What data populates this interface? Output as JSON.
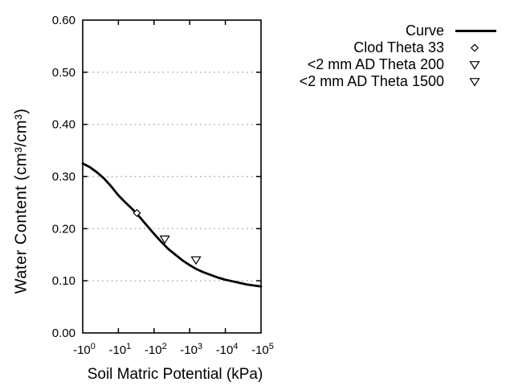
{
  "chart_data": {
    "type": "line",
    "xlabel": "Soil Matric Potential (kPa)",
    "ylabel": "Water Content (cm³/cm³)",
    "x_axis": {
      "scale": "negative-log10",
      "tick_mantissa": "-10",
      "tick_exponents": [
        "0",
        "1",
        "2",
        "3",
        "4",
        "5"
      ],
      "decade_range": [
        0,
        5
      ]
    },
    "y_axis": {
      "range": [
        0.0,
        0.6
      ],
      "tick_values": [
        0.0,
        0.1,
        0.2,
        0.3,
        0.4,
        0.5,
        0.6
      ],
      "tick_labels": [
        "0.00",
        "0.10",
        "0.20",
        "0.30",
        "0.40",
        "0.50",
        "0.60"
      ],
      "gridlines_at": [
        0.1,
        0.2,
        0.3,
        0.4,
        0.5
      ]
    },
    "curve": {
      "name": "Curve",
      "points_decade_theta": [
        [
          0.0,
          0.325
        ],
        [
          0.2,
          0.318
        ],
        [
          0.4,
          0.308
        ],
        [
          0.6,
          0.296
        ],
        [
          0.8,
          0.281
        ],
        [
          1.0,
          0.264
        ],
        [
          1.2,
          0.25
        ],
        [
          1.4,
          0.237
        ],
        [
          1.6,
          0.222
        ],
        [
          1.8,
          0.206
        ],
        [
          2.0,
          0.19
        ],
        [
          2.2,
          0.175
        ],
        [
          2.4,
          0.161
        ],
        [
          2.6,
          0.15
        ],
        [
          2.8,
          0.139
        ],
        [
          3.0,
          0.13
        ],
        [
          3.2,
          0.122
        ],
        [
          3.4,
          0.116
        ],
        [
          3.6,
          0.111
        ],
        [
          3.8,
          0.106
        ],
        [
          4.0,
          0.102
        ],
        [
          4.2,
          0.099
        ],
        [
          4.4,
          0.096
        ],
        [
          4.6,
          0.093
        ],
        [
          4.8,
          0.091
        ],
        [
          5.0,
          0.089
        ]
      ]
    },
    "point_series": [
      {
        "name": "Clod Theta 33",
        "symbol": "diamond",
        "points": [
          {
            "kPa": -33,
            "water_content": 0.23
          }
        ]
      },
      {
        "name": "<2 mm AD Theta 200",
        "symbol": "triangle-down",
        "points": [
          {
            "kPa": -200,
            "water_content": 0.18
          }
        ]
      },
      {
        "name": "<2 mm AD Theta 1500",
        "symbol": "triangle-down",
        "points": [
          {
            "kPa": -1500,
            "water_content": 0.14
          }
        ]
      }
    ],
    "legend": {
      "position": "top-right",
      "items": [
        {
          "label": "Curve",
          "symbol": "line"
        },
        {
          "label": "Clod Theta 33",
          "symbol": "diamond"
        },
        {
          "label": "<2 mm AD Theta 200",
          "symbol": "triangle-down"
        },
        {
          "label": "<2 mm AD Theta 1500",
          "symbol": "triangle-down"
        }
      ]
    },
    "colors": {
      "curve": "#000000",
      "axis": "#000000",
      "grid": "#a8a8a8",
      "marker_fill": "#ffffff",
      "background": "#ffffff",
      "text": "#000000"
    }
  }
}
